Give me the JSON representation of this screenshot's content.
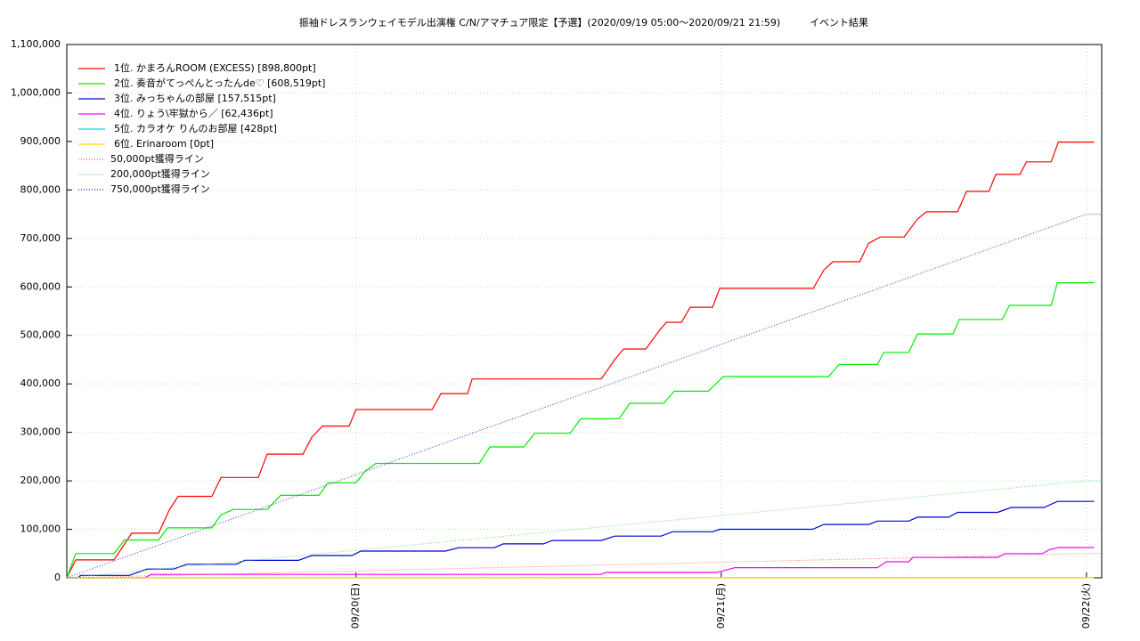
{
  "chart_data": {
    "type": "line",
    "title": "振袖ドレスランウェイモデル出演権 C/N/アマチュア限定【予選】(2020/09/19 05:00〜2020/09/21 21:59)",
    "subtitle": "イベント結果",
    "xlim": [
      "09/19 05:00",
      "09/22 01:00"
    ],
    "xticks": [
      {
        "value": "09/20 00:00",
        "label": "09/20(日)"
      },
      {
        "value": "09/21 00:00",
        "label": "09/21(月)"
      },
      {
        "value": "09/22 00:00",
        "label": "09/22(火)"
      }
    ],
    "ylim": [
      0,
      1100000
    ],
    "yticks": [
      0,
      {
        "value": 100000,
        "label": "100,000"
      },
      {
        "value": 200000,
        "label": "200,000"
      },
      {
        "value": 300000,
        "label": "300,000"
      },
      {
        "value": 400000,
        "label": "400,000"
      },
      {
        "value": 500000,
        "label": "500,000"
      },
      {
        "value": 600000,
        "label": "600,000"
      },
      {
        "value": 700000,
        "label": "700,000"
      },
      {
        "value": 800000,
        "label": "800,000"
      },
      {
        "value": 900000,
        "label": "900,000"
      },
      {
        "value": 1000000,
        "label": "1,000,000"
      },
      {
        "value": 1100000,
        "label": "1,100,000"
      }
    ],
    "grid": true,
    "legend": "top-left",
    "series": [
      {
        "name": "1位. かまろんROOM (EXCESS) [898,800pt]",
        "color": "#ff0000",
        "x": [
          "09/19 05:00",
          "09/19 05:35",
          "09/19 08:06",
          "09/19 09:16",
          "09/19 11:02",
          "09/19 11:44",
          "09/19 12:19",
          "09/19 14:32",
          "09/19 15:08",
          "09/19 17:35",
          "09/19 18:10",
          "09/19 20:31",
          "09/19 21:06",
          "09/19 21:48",
          "09/19 23:33",
          "09/20 00:00",
          "09/20 05:00",
          "09/20 05:35",
          "09/20 07:20",
          "09/20 07:38",
          "09/20 16:07",
          "09/20 17:00",
          "09/20 17:35",
          "09/20 19:03",
          "09/20 19:56",
          "09/20 20:24",
          "09/20 21:23",
          "09/20 21:58",
          "09/20 23:26",
          "09/20 23:54",
          "09/21 06:03",
          "09/21 06:45",
          "09/21 07:20",
          "09/21 09:06",
          "09/21 09:41",
          "09/21 10:27",
          "09/21 12:01",
          "09/21 12:54",
          "09/21 13:29",
          "09/21 15:32",
          "09/21 16:07",
          "09/21 17:35",
          "09/21 18:03",
          "09/21 19:38",
          "09/21 20:03",
          "09/21 21:41",
          "09/21 22:09",
          "09/22 00:30"
        ],
        "values": [
          0,
          37000,
          37000,
          92000,
          92000,
          140000,
          168000,
          168000,
          207000,
          207000,
          255000,
          255000,
          290000,
          313000,
          313000,
          347000,
          347000,
          380000,
          380000,
          410000,
          410000,
          450000,
          472000,
          472000,
          510000,
          527000,
          527000,
          558000,
          558000,
          597000,
          597000,
          635000,
          652000,
          652000,
          690000,
          703000,
          703000,
          740000,
          755000,
          755000,
          797000,
          797000,
          832000,
          832000,
          858000,
          858000,
          898800,
          898800
        ]
      },
      {
        "name": "2位. 奏音がてっぺんとったんde♡ [608,519pt]",
        "color": "#00ee00",
        "x": [
          "09/19 05:00",
          "09/19 05:35",
          "09/19 08:06",
          "09/19 08:48",
          "09/19 11:02",
          "09/19 11:37",
          "09/19 14:32",
          "09/19 15:08",
          "09/19 15:57",
          "09/19 18:10",
          "09/19 19:03",
          "09/19 21:34",
          "09/19 22:09",
          "09/20 00:00",
          "09/20 00:37",
          "09/20 01:19",
          "09/20 08:06",
          "09/20 08:48",
          "09/20 11:02",
          "09/20 11:44",
          "09/20 14:04",
          "09/20 14:46",
          "09/20 17:17",
          "09/20 18:00",
          "09/20 20:13",
          "09/20 20:55",
          "09/20 23:09",
          "09/21 00:08",
          "09/21 07:03",
          "09/21 07:45",
          "09/21 10:16",
          "09/21 10:41",
          "09/21 12:19",
          "09/21 12:54",
          "09/21 15:14",
          "09/21 15:39",
          "09/21 18:28",
          "09/21 18:56",
          "09/21 21:41",
          "09/21 22:05",
          "09/22 00:30"
        ],
        "values": [
          0,
          50000,
          50000,
          78000,
          78000,
          103000,
          103000,
          130000,
          141000,
          141000,
          170000,
          170000,
          196000,
          196000,
          220000,
          236000,
          236000,
          270000,
          270000,
          298000,
          298000,
          328000,
          328000,
          360000,
          360000,
          385000,
          385000,
          415000,
          415000,
          440000,
          440000,
          465000,
          465000,
          503000,
          503000,
          533000,
          533000,
          562000,
          562000,
          608519,
          608519
        ]
      },
      {
        "name": "3位. みっちゃんの部屋 [157,515pt]",
        "color": "#0000dd",
        "x": [
          "09/19 05:00",
          "09/19 05:46",
          "09/19 05:53",
          "09/19 09:06",
          "09/19 10:16",
          "09/19 12:01",
          "09/19 12:54",
          "09/19 16:07",
          "09/19 16:42",
          "09/19 20:13",
          "09/19 21:06",
          "09/19 23:44",
          "09/20 00:19",
          "09/20 05:53",
          "09/20 06:45",
          "09/20 09:06",
          "09/20 09:41",
          "09/20 12:19",
          "09/20 12:54",
          "09/20 16:07",
          "09/20 17:00",
          "09/20 20:03",
          "09/20 20:48",
          "09/20 23:26",
          "09/20 23:54",
          "09/21 06:00",
          "09/21 06:45",
          "09/21 09:41",
          "09/21 10:16",
          "09/21 12:19",
          "09/21 12:54",
          "09/21 14:57",
          "09/21 15:32",
          "09/21 18:10",
          "09/21 19:03",
          "09/21 21:13",
          "09/21 22:05",
          "09/22 00:30"
        ],
        "values": [
          0,
          0,
          5000,
          5000,
          18000,
          18000,
          28000,
          28000,
          36000,
          36000,
          46000,
          46000,
          55000,
          55000,
          62000,
          62000,
          70000,
          70000,
          77000,
          77000,
          86000,
          86000,
          95000,
          95000,
          100000,
          100000,
          110000,
          110000,
          117000,
          117000,
          125000,
          125000,
          135000,
          135000,
          145000,
          145000,
          157515,
          157515
        ]
      },
      {
        "name": "4位. りょう\\牢獄から／ [62,436pt]",
        "color": "#ff00ff",
        "x": [
          "09/19 05:00",
          "09/19 10:06",
          "09/19 10:34",
          "09/20 16:07",
          "09/20 16:25",
          "09/20 23:44",
          "09/21 00:54",
          "09/21 10:16",
          "09/21 10:51",
          "09/21 12:19",
          "09/21 12:36",
          "09/21 18:10",
          "09/21 18:38",
          "09/21 21:06",
          "09/21 21:34",
          "09/21 22:09",
          "09/22 00:30"
        ],
        "values": [
          0,
          0,
          7000,
          7000,
          11000,
          11000,
          21000,
          21000,
          33000,
          33000,
          42000,
          42000,
          50000,
          50000,
          58000,
          62436,
          62436
        ]
      },
      {
        "name": "5位. カラオケ りんのお部屋 [428pt]",
        "color": "#00dddd",
        "x": [
          "09/19 05:00",
          "09/22 00:30"
        ],
        "values": [
          0,
          428
        ]
      },
      {
        "name": "6位. Erinaroom [0pt]",
        "color": "#ffd700",
        "x": [
          "09/19 05:00",
          "09/22 00:30"
        ],
        "values": [
          0,
          0
        ]
      },
      {
        "name": "50,000pt獲得ライン",
        "color": "#ff6666",
        "dash": true,
        "x": [
          "09/19 05:00",
          "09/22 00:00",
          "09/22 01:00"
        ],
        "values": [
          0,
          50000,
          50000
        ]
      },
      {
        "name": "200,000pt獲得ライン",
        "color": "#66dd66",
        "dash": true,
        "x": [
          "09/19 05:00",
          "09/22 00:00",
          "09/22 01:00"
        ],
        "values": [
          0,
          200000,
          200000
        ]
      },
      {
        "name": "750,000pt獲得ライン",
        "color": "#3333cc",
        "dash": true,
        "x": [
          "09/19 05:00",
          "09/22 00:00",
          "09/22 01:00"
        ],
        "values": [
          0,
          750000,
          750000
        ]
      }
    ]
  }
}
